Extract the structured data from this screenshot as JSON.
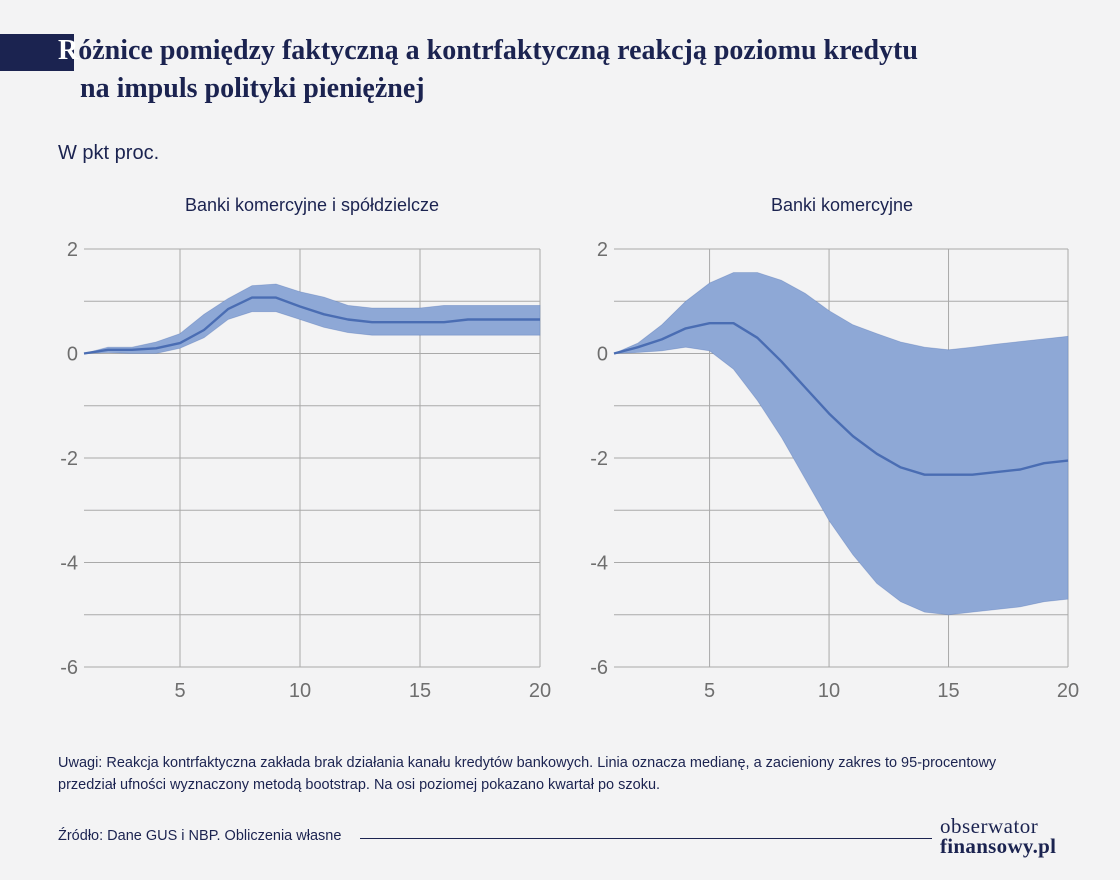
{
  "header": {
    "title_cap": "R",
    "title_line1": "óżnice pomiędzy faktyczną a kontrfaktyczną reakcją poziomu kredytu",
    "title_line2": "na impuls polityki pieniężnej",
    "subtitle": "W pkt proc."
  },
  "chart_data": [
    {
      "type": "area",
      "title": "Banki komercyjne i spółdzielcze",
      "xlabel": "",
      "ylabel": "",
      "xlim": [
        1,
        20
      ],
      "ylim": [
        -6,
        2
      ],
      "xticks": [
        5,
        10,
        15,
        20
      ],
      "yticks": [
        2,
        0,
        -2,
        -4,
        -6
      ],
      "grid": true,
      "x": [
        1,
        2,
        3,
        4,
        5,
        6,
        7,
        8,
        9,
        10,
        11,
        12,
        13,
        14,
        15,
        16,
        17,
        18,
        19,
        20
      ],
      "series": [
        {
          "role": "median",
          "values": [
            0,
            0.07,
            0.07,
            0.1,
            0.2,
            0.45,
            0.85,
            1.07,
            1.07,
            0.9,
            0.75,
            0.65,
            0.6,
            0.6,
            0.6,
            0.6,
            0.65,
            0.65,
            0.65,
            0.65
          ]
        },
        {
          "role": "upper",
          "values": [
            0,
            0.12,
            0.12,
            0.22,
            0.38,
            0.75,
            1.05,
            1.3,
            1.33,
            1.18,
            1.08,
            0.92,
            0.87,
            0.87,
            0.87,
            0.92,
            0.92,
            0.92,
            0.92,
            0.92
          ]
        },
        {
          "role": "lower",
          "values": [
            0,
            0.02,
            0.0,
            0.0,
            0.1,
            0.3,
            0.65,
            0.8,
            0.8,
            0.65,
            0.5,
            0.4,
            0.35,
            0.35,
            0.35,
            0.35,
            0.35,
            0.35,
            0.35,
            0.35
          ]
        }
      ]
    },
    {
      "type": "area",
      "title": "Banki komercyjne",
      "xlabel": "",
      "ylabel": "",
      "xlim": [
        1,
        20
      ],
      "ylim": [
        -6,
        2
      ],
      "xticks": [
        5,
        10,
        15,
        20
      ],
      "yticks": [
        2,
        0,
        -2,
        -4,
        -6
      ],
      "grid": true,
      "x": [
        1,
        2,
        3,
        4,
        5,
        6,
        7,
        8,
        9,
        10,
        11,
        12,
        13,
        14,
        15,
        16,
        17,
        18,
        19,
        20
      ],
      "series": [
        {
          "role": "median",
          "values": [
            0,
            0.12,
            0.27,
            0.48,
            0.58,
            0.58,
            0.3,
            -0.15,
            -0.65,
            -1.15,
            -1.58,
            -1.92,
            -2.18,
            -2.32,
            -2.32,
            -2.32,
            -2.27,
            -2.22,
            -2.1,
            -2.05
          ]
        },
        {
          "role": "upper",
          "values": [
            0,
            0.2,
            0.55,
            1.0,
            1.35,
            1.55,
            1.55,
            1.4,
            1.15,
            0.82,
            0.55,
            0.38,
            0.22,
            0.12,
            0.07,
            0.12,
            0.18,
            0.23,
            0.28,
            0.33
          ]
        },
        {
          "role": "lower",
          "values": [
            0,
            0.02,
            0.05,
            0.12,
            0.05,
            -0.3,
            -0.9,
            -1.6,
            -2.4,
            -3.2,
            -3.85,
            -4.4,
            -4.75,
            -4.95,
            -5.0,
            -4.95,
            -4.9,
            -4.85,
            -4.75,
            -4.7
          ]
        }
      ]
    }
  ],
  "colors": {
    "band": "#8ea8d6",
    "median": "#4a6db3",
    "grid": "#a9a9a9",
    "title_bar": "#1b2350"
  },
  "footer": {
    "note_line1": "Uwagi: Reakcja kontrfaktyczna zakłada brak działania kanału kredytów bankowych. Linia oznacza medianę, a zacieniony zakres to 95-procentowy",
    "note_line2": "przedział ufności wyznaczony metodą bootstrap. Na osi poziomej pokazano kwartał po szoku.",
    "source": "Źródło: Dane GUS i NBP. Obliczenia własne",
    "logo_line1": "obserwator",
    "logo_line2": "finansowy.pl"
  }
}
